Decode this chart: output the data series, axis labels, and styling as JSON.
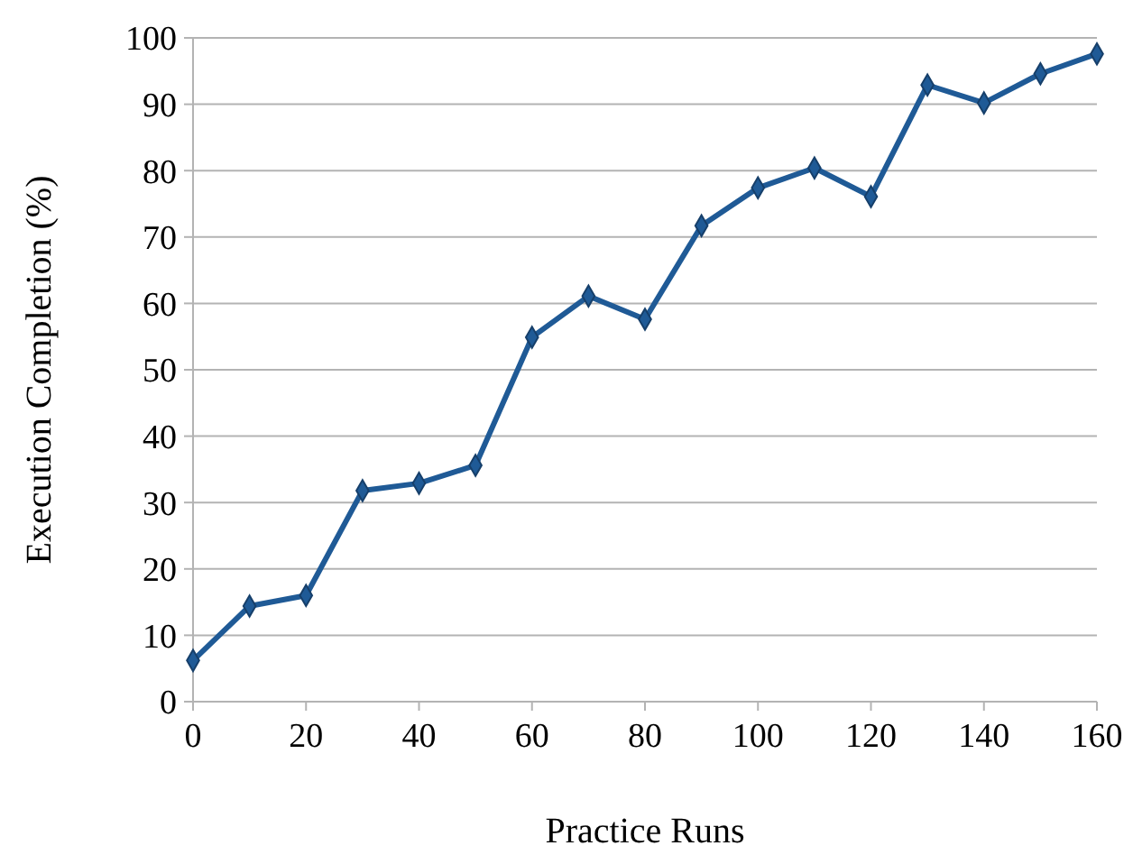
{
  "chart_data": {
    "type": "line",
    "xlabel": "Practice Runs",
    "ylabel": "Execution Completion (%)",
    "x": [
      0,
      10,
      20,
      30,
      40,
      50,
      60,
      70,
      80,
      90,
      100,
      110,
      120,
      130,
      140,
      150,
      160
    ],
    "series": [
      {
        "color": "#1f5a96",
        "values": [
          6.2,
          14.4,
          16,
          31.8,
          32.9,
          35.6,
          54.9,
          61.1,
          57.6,
          71.7,
          77.4,
          80.4,
          76.1,
          92.9,
          90.2,
          94.6,
          97.6
        ]
      }
    ],
    "xlim": [
      0,
      160
    ],
    "xticks": [
      0,
      20,
      40,
      60,
      80,
      100,
      120,
      140,
      160
    ],
    "ylim": [
      0,
      100
    ],
    "yticks": [
      0,
      10,
      20,
      30,
      40,
      50,
      60,
      70,
      80,
      90,
      100
    ],
    "grid": "y",
    "marker": "diamond",
    "line_style": "solid"
  }
}
